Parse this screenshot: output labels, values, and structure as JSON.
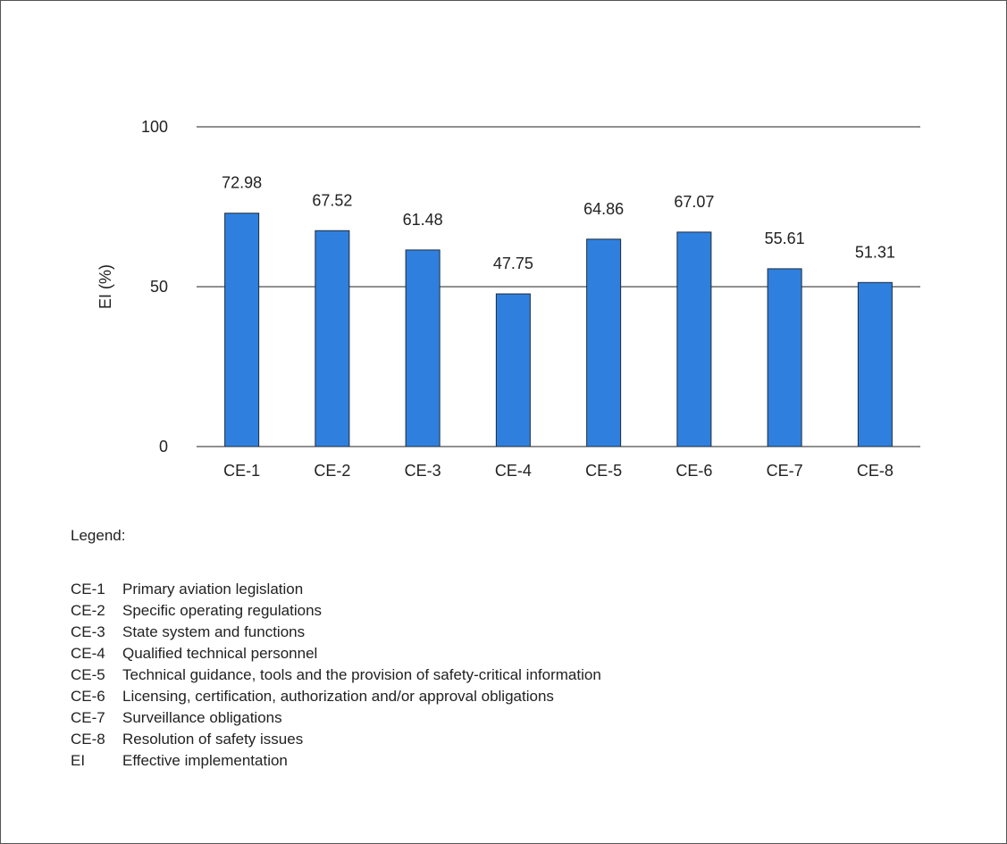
{
  "chart_data": {
    "type": "bar",
    "categories": [
      "CE-1",
      "CE-2",
      "CE-3",
      "CE-4",
      "CE-5",
      "CE-6",
      "CE-7",
      "CE-8"
    ],
    "values": [
      72.98,
      67.52,
      61.48,
      47.75,
      64.86,
      67.07,
      55.61,
      51.31
    ],
    "ylabel": "EI (%)",
    "ylim": [
      0,
      100
    ],
    "yticks": [
      0,
      50,
      100
    ],
    "bar_color": "#2f80de",
    "grid": true
  },
  "legend": {
    "title": "Legend:",
    "items": [
      {
        "code": "CE-1",
        "text": "Primary aviation legislation"
      },
      {
        "code": "CE-2",
        "text": "Specific operating regulations"
      },
      {
        "code": "CE-3",
        "text": "State system and functions"
      },
      {
        "code": "CE-4",
        "text": "Qualified technical personnel"
      },
      {
        "code": "CE-5",
        "text": "Technical guidance, tools and the provision of safety-critical information"
      },
      {
        "code": "CE-6",
        "text": "Licensing, certification, authorization and/or approval obligations"
      },
      {
        "code": "CE-7",
        "text": "Surveillance obligations"
      },
      {
        "code": "CE-8",
        "text": "Resolution of safety issues"
      },
      {
        "code": "EI",
        "text": "Effective implementation"
      }
    ]
  }
}
